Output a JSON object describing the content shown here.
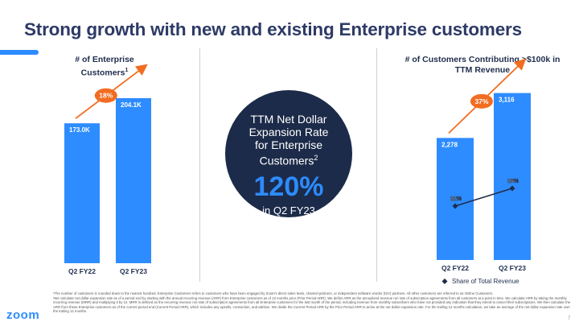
{
  "title": "Strong growth with new and existing Enterprise customers",
  "left_chart_title_line1": "# of Enterprise",
  "left_chart_title_line2": "Customers",
  "left_chart_title_sup": "1",
  "right_chart_title_line1": "# of Customers Contributing >$100k in",
  "right_chart_title_line2": "TTM Revenue",
  "circle": {
    "line1": "TTM Net Dollar",
    "line2": "Expansion Rate",
    "line3": "for Enterprise",
    "line4": "Customers",
    "line4_sup": "2",
    "value": "120%",
    "sub": "in Q2 FY23"
  },
  "chart_data": [
    {
      "type": "bar",
      "title": "# of Enterprise Customers",
      "categories": [
        "Q2 FY22",
        "Q2 FY23"
      ],
      "values": [
        173.0,
        204.1
      ],
      "value_labels": [
        "173.0K",
        "204.1K"
      ],
      "growth_label": "18%",
      "ylim": [
        0,
        210
      ],
      "colors": {
        "bar": "#2d8cff",
        "badge": "#f26d21"
      }
    },
    {
      "type": "bar",
      "title": "# of Customers Contributing >$100k in TTM Revenue",
      "categories": [
        "Q2 FY22",
        "Q2 FY23"
      ],
      "values": [
        2278,
        3116
      ],
      "value_labels": [
        "2,278",
        "3,116"
      ],
      "growth_label": "37%",
      "ylim": [
        0,
        3200
      ],
      "line_series": {
        "name": "Share of Total Revenue",
        "values": [
          22,
          26
        ],
        "labels": [
          "22%",
          "26%"
        ]
      },
      "legend": "Share of Total Revenue",
      "colors": {
        "bar": "#2d8cff",
        "badge": "#f26d21",
        "line": "#1f2d4d"
      }
    }
  ],
  "footnote1": "¹The number of customers is rounded down to the nearest hundred. Enterprise Customers refers to customers who have been engaged by Zoom's direct sales team, channel partners, or independent software vendor (ISV) partners. All other customers are referred to as Online Customers.",
  "footnote2": "²We calculate net dollar expansion rate as of a period end by starting with the annual recurring revenue (ARR) from Enterprise customers as of 12 months prior (Prior Period ARR). We define ARR as the annualized revenue run rate of subscription agreements from all customers at a point in time. We calculate ARR by taking the monthly recurring revenue (MRR) and multiplying it by 12. MRR is defined as the recurring revenue run-rate of subscription agreements from all Enterprise customers for the last month of the period, including revenue from monthly subscribers who have not provided any indication that they intend to cancel their subscriptions. We then calculate the ARR from these Enterprise customers as of the current period end (Current Period ARR), which includes any upsells, contraction, and attrition. We divide the Current Period ARR by the Prior Period ARR to arrive at the net dollar expansion rate. For the trailing 12 months calculation, we take an average of the net dollar expansion rate over the trailing 12 months.",
  "logo": "zoom",
  "page_number": "7"
}
